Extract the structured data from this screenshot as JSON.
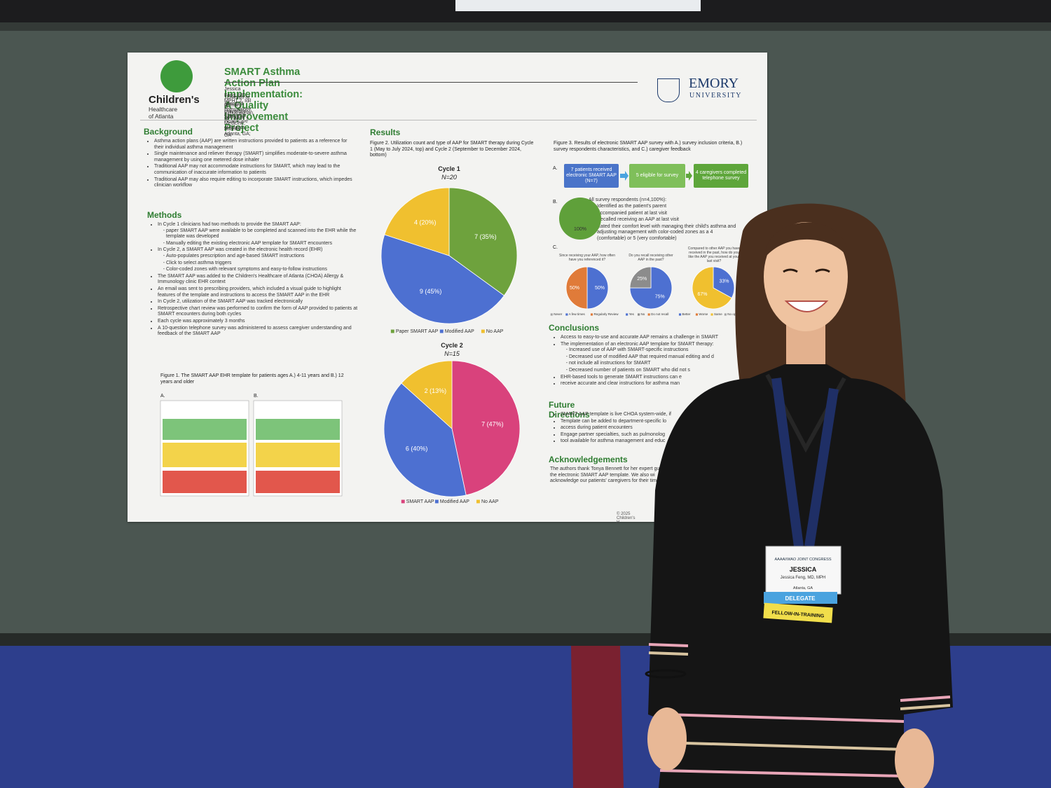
{
  "poster": {
    "logo_left": "Children's",
    "logo_left_sub": "Healthcare of Atlanta",
    "title": "SMART Asthma Action Plan Implementation: A Quality Improvement Project",
    "authors": "Jessica Feng, MD, MPH1,2, Idil D. Ezhuthachan, MD, MS1,2",
    "affiliations": [
      "1Division of Allergy & Immunology, Children's Healthcare of Atlanta, Atlanta, GA;",
      "2Emory University School of Medicine, Atlanta, GA"
    ],
    "logo_right": "EMORY",
    "logo_right_sub": "UNIVERSITY",
    "background": {
      "heading": "Background",
      "items": [
        "Asthma action plans (AAP) are written instructions provided to patients as a reference for their individual asthma management",
        "Single maintenance and reliever therapy (SMART) simplifies moderate-to-severe asthma management by using one metered dose inhaler",
        "Traditional AAP may not accommodate instructions for SMART, which may lead to the communication of inaccurate information to patients",
        "Traditional AAP may also require editing to incorporate SMART instructions, which impedes clinician workflow"
      ]
    },
    "methods": {
      "heading": "Methods",
      "items": [
        {
          "text": "In Cycle 1 clinicians had two methods to provide the SMART AAP:",
          "sub": [
            "paper SMART AAP were available to be completed and scanned into the EHR while the template was developed",
            "Manually editing the existing electronic AAP template for SMART encounters"
          ]
        },
        {
          "text": "In Cycle 2, a SMART AAP was created in the electronic health record (EHR)",
          "sub": [
            "Auto-populates prescription and age-based SMART instructions",
            "Click to select asthma triggers",
            "Color-coded zones with relevant symptoms and easy-to-follow instructions"
          ]
        },
        "The SMART AAP was added to the Children's Healthcare of Atlanta (CHOA) Allergy & Immunology clinic EHR context",
        "An email was sent to prescribing providers, which included a visual guide to highlight features of the template and instructions to access the SMART AAP in the EHR",
        "In Cycle 2, utilization of the SMART AAP was tracked electronically",
        "Retrospective chart review was performed to confirm the form of AAP provided to patients at SMART encounters during both cycles",
        "Each cycle was approximately 3 months",
        "A 10-question telephone survey was administered to assess caregiver understanding and feedback of the SMART AAP"
      ]
    },
    "figure1": {
      "caption": "Figure 1. The SMART AAP EHR template for patients ages A.) 4-11 years and B.) 12 years and older",
      "panels": [
        "A.",
        "B."
      ]
    },
    "results": {
      "heading": "Results",
      "caption": "Figure 2. Utilization count and type of AAP for SMART therapy during Cycle 1 (May to July 2024, top) and Cycle 2 (September to December 2024, bottom)"
    },
    "figure3": {
      "caption": "Figure 3. Results of electronic SMART AAP survey with A.) survey inclusion criteria, B.) survey respondents characteristics, and C.) caregiver feedback",
      "panels": [
        "A.",
        "B.",
        "C."
      ],
      "flow": [
        "7 patients received electronic SMART AAP (N=7)",
        "5 eligible for survey",
        "4 caregivers completed telephone survey"
      ],
      "respondents_heading": "All survey respondents (n=4,100%):",
      "respondents": [
        "Identified as the patient's parent",
        "Accompanied patient at last visit",
        "Recalled receiving an AAP at last visit",
        "Rated their comfort level with managing their child's asthma and adjusting management with color-coded zones as a 4 (comfortable) or 5 (very comfortable)"
      ]
    },
    "conclusions": {
      "heading": "Conclusions",
      "items": [
        "Access to easy-to-use and accurate AAP remains a challenge in SMART",
        {
          "text": "The implementation of an electronic AAP template for SMART therapy:",
          "sub": [
            "Increased use of AAP with SMART-specific instructions",
            "Decreased use of modified AAP that required manual editing and d",
            "not include all instructions for SMART",
            "Decreased number of patients on SMART who did not s"
          ]
        },
        "EHR-based tools to generate SMART instructions can e",
        "receive accurate and clear instructions for asthma man"
      ]
    },
    "future": {
      "heading": "Future Directions",
      "items": [
        "SMART AAP template is live CHOA system-wide, if",
        "Template can be added to department-specific lo",
        "access during patient encounters",
        "Engage partner specialties, such as pulmonolog",
        "tool available for asthma management and educ"
      ]
    },
    "acknowledgements": {
      "heading": "Acknowledgements",
      "text": "The authors thank Tonya Bennett for her expert gu of the electronic SMART AAP template. We also wi acknowledge our patients' caregivers for their time"
    },
    "footer": "© 2025 Children's H"
  },
  "badge": {
    "event": "AAAAI/WAO JOINT CONGRESS",
    "name": "JESSICA",
    "full_name": "Jessica Feng, MD, MPH",
    "location": "Atlanta, GA",
    "role": "DELEGATE",
    "category": "FELLOW-IN-TRAINING"
  },
  "chart_data": [
    {
      "type": "pie",
      "title": "Cycle 1",
      "subtitle": "N=20",
      "categories": [
        "Paper SMART AAP",
        "Modified AAP",
        "No AAP"
      ],
      "values": [
        7,
        9,
        4
      ],
      "value_labels": [
        "7 (35%)",
        "9 (45%)",
        "4 (20%)"
      ],
      "colors": [
        "#6ea23d",
        "#4d70d1",
        "#f0c02f"
      ]
    },
    {
      "type": "pie",
      "title": "Cycle 2",
      "subtitle": "N=15",
      "categories": [
        "SMART AAP",
        "Modified AAP",
        "No AAP"
      ],
      "values": [
        7,
        6,
        2
      ],
      "value_labels": [
        "7 (47%)",
        "6 (40%)",
        "2 (13%)"
      ],
      "colors": [
        "#d9427c",
        "#4d70d1",
        "#f0c02f"
      ]
    },
    {
      "type": "pie",
      "values": [
        100
      ],
      "value_labels": [
        "100%"
      ],
      "colors": [
        "#5fa03a"
      ]
    },
    {
      "type": "pie",
      "title": "Since receiving your AAP, how often have you referenced it?",
      "categories": [
        "Never",
        "A few times",
        "Regularly Review"
      ],
      "values": [
        0,
        50,
        50
      ],
      "value_labels": [
        null,
        "50%",
        "50%"
      ],
      "colors": [
        "#a5a5a5",
        "#4d70d1",
        "#e07b39"
      ]
    },
    {
      "type": "pie",
      "title": "Do you recall receiving other AAP in the past?",
      "categories": [
        "Yes",
        "No",
        "Do not recall"
      ],
      "values": [
        75,
        25,
        0
      ],
      "value_labels": [
        "75%",
        "25%",
        null
      ],
      "colors": [
        "#4d70d1",
        "#8c8c8c",
        "#e07b39"
      ]
    },
    {
      "type": "pie",
      "title": "Compared to other AAP you have received in the past, how do you like the AAP you received at your last visit?",
      "categories": [
        "Better",
        "Worse",
        "Same",
        "No opinion"
      ],
      "values": [
        33,
        0,
        67,
        0
      ],
      "value_labels": [
        "33%",
        null,
        "67%",
        null
      ],
      "colors": [
        "#4d70d1",
        "#e07b39",
        "#f0c02f",
        "#a5a5a5"
      ]
    }
  ]
}
